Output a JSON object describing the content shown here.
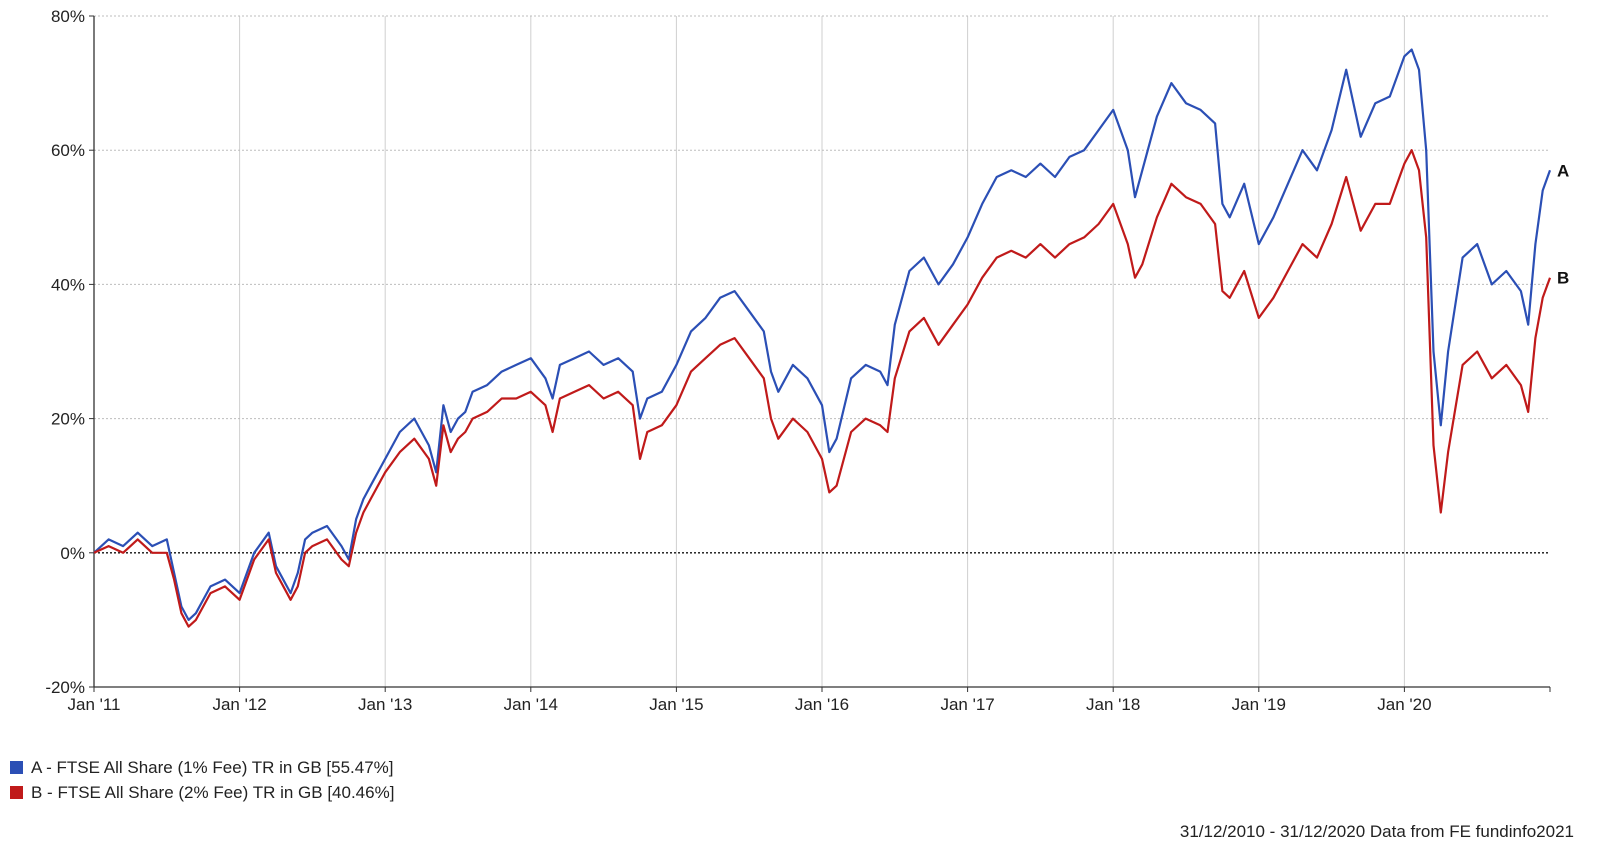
{
  "chart_data": {
    "type": "line",
    "title": "",
    "xlabel": "",
    "ylabel": "",
    "ylim": [
      -20,
      80
    ],
    "y_ticks": [
      "80%",
      "60%",
      "40%",
      "20%",
      "0%",
      "-20%"
    ],
    "y_tick_values": [
      80,
      60,
      40,
      20,
      0,
      -20
    ],
    "x_ticks": [
      "Jan '11",
      "Jan '12",
      "Jan '13",
      "Jan '14",
      "Jan '15",
      "Jan '16",
      "Jan '17",
      "Jan '18",
      "Jan '19",
      "Jan '20"
    ],
    "x_tick_values": [
      2011,
      2012,
      2013,
      2014,
      2015,
      2016,
      2017,
      2018,
      2019,
      2020
    ],
    "xlim": [
      2011,
      2021
    ],
    "grid": true,
    "zero_line": true,
    "legend_placement": "bottom-left",
    "series": [
      {
        "name": "A - FTSE All Share (1% Fee) TR in GB [55.47%]",
        "end_label": "A",
        "color": "#2b4fb5",
        "x": [
          2011.0,
          2011.1,
          2011.2,
          2011.3,
          2011.4,
          2011.5,
          2011.55,
          2011.6,
          2011.65,
          2011.7,
          2011.8,
          2011.9,
          2012.0,
          2012.1,
          2012.2,
          2012.25,
          2012.35,
          2012.4,
          2012.45,
          2012.5,
          2012.6,
          2012.7,
          2012.75,
          2012.8,
          2012.85,
          2012.9,
          2013.0,
          2013.1,
          2013.2,
          2013.3,
          2013.35,
          2013.4,
          2013.45,
          2013.5,
          2013.55,
          2013.6,
          2013.7,
          2013.8,
          2013.9,
          2014.0,
          2014.1,
          2014.15,
          2014.2,
          2014.3,
          2014.4,
          2014.5,
          2014.6,
          2014.7,
          2014.75,
          2014.8,
          2014.9,
          2015.0,
          2015.1,
          2015.2,
          2015.3,
          2015.4,
          2015.5,
          2015.6,
          2015.65,
          2015.7,
          2015.8,
          2015.9,
          2016.0,
          2016.05,
          2016.1,
          2016.2,
          2016.3,
          2016.4,
          2016.45,
          2016.5,
          2016.6,
          2016.7,
          2016.8,
          2016.9,
          2017.0,
          2017.1,
          2017.2,
          2017.3,
          2017.4,
          2017.5,
          2017.6,
          2017.7,
          2017.8,
          2017.9,
          2018.0,
          2018.1,
          2018.15,
          2018.2,
          2018.3,
          2018.4,
          2018.5,
          2018.6,
          2018.7,
          2018.75,
          2018.8,
          2018.9,
          2019.0,
          2019.1,
          2019.2,
          2019.3,
          2019.4,
          2019.5,
          2019.6,
          2019.7,
          2019.8,
          2019.9,
          2020.0,
          2020.05,
          2020.1,
          2020.15,
          2020.2,
          2020.25,
          2020.3,
          2020.4,
          2020.5,
          2020.6,
          2020.7,
          2020.8,
          2020.85,
          2020.9,
          2020.95,
          2021.0
        ],
        "values": [
          0,
          2,
          1,
          3,
          1,
          2,
          -3,
          -8,
          -10,
          -9,
          -5,
          -4,
          -6,
          0,
          3,
          -2,
          -6,
          -3,
          2,
          3,
          4,
          1,
          -1,
          5,
          8,
          10,
          14,
          18,
          20,
          16,
          12,
          22,
          18,
          20,
          21,
          24,
          25,
          27,
          28,
          29,
          26,
          23,
          28,
          29,
          30,
          28,
          29,
          27,
          20,
          23,
          24,
          28,
          33,
          35,
          38,
          39,
          36,
          33,
          27,
          24,
          28,
          26,
          22,
          15,
          17,
          26,
          28,
          27,
          25,
          34,
          42,
          44,
          40,
          43,
          47,
          52,
          56,
          57,
          56,
          58,
          56,
          59,
          60,
          63,
          66,
          60,
          53,
          57,
          65,
          70,
          67,
          66,
          64,
          52,
          50,
          55,
          46,
          50,
          55,
          60,
          57,
          63,
          72,
          62,
          67,
          68,
          74,
          75,
          72,
          60,
          30,
          19,
          30,
          44,
          46,
          40,
          42,
          39,
          34,
          46,
          54,
          57
        ]
      },
      {
        "name": "B - FTSE All Share (2% Fee) TR in GB [40.46%]",
        "end_label": "B",
        "color": "#c01a1a",
        "x": [
          2011.0,
          2011.1,
          2011.2,
          2011.3,
          2011.4,
          2011.5,
          2011.55,
          2011.6,
          2011.65,
          2011.7,
          2011.8,
          2011.9,
          2012.0,
          2012.1,
          2012.2,
          2012.25,
          2012.35,
          2012.4,
          2012.45,
          2012.5,
          2012.6,
          2012.7,
          2012.75,
          2012.8,
          2012.85,
          2012.9,
          2013.0,
          2013.1,
          2013.2,
          2013.3,
          2013.35,
          2013.4,
          2013.45,
          2013.5,
          2013.55,
          2013.6,
          2013.7,
          2013.8,
          2013.9,
          2014.0,
          2014.1,
          2014.15,
          2014.2,
          2014.3,
          2014.4,
          2014.5,
          2014.6,
          2014.7,
          2014.75,
          2014.8,
          2014.9,
          2015.0,
          2015.1,
          2015.2,
          2015.3,
          2015.4,
          2015.5,
          2015.6,
          2015.65,
          2015.7,
          2015.8,
          2015.9,
          2016.0,
          2016.05,
          2016.1,
          2016.2,
          2016.3,
          2016.4,
          2016.45,
          2016.5,
          2016.6,
          2016.7,
          2016.8,
          2016.9,
          2017.0,
          2017.1,
          2017.2,
          2017.3,
          2017.4,
          2017.5,
          2017.6,
          2017.7,
          2017.8,
          2017.9,
          2018.0,
          2018.1,
          2018.15,
          2018.2,
          2018.3,
          2018.4,
          2018.5,
          2018.6,
          2018.7,
          2018.75,
          2018.8,
          2018.9,
          2019.0,
          2019.1,
          2019.2,
          2019.3,
          2019.4,
          2019.5,
          2019.6,
          2019.7,
          2019.8,
          2019.9,
          2020.0,
          2020.05,
          2020.1,
          2020.15,
          2020.2,
          2020.25,
          2020.3,
          2020.4,
          2020.5,
          2020.6,
          2020.7,
          2020.8,
          2020.85,
          2020.9,
          2020.95,
          2021.0
        ],
        "values": [
          0,
          1,
          0,
          2,
          0,
          0,
          -4,
          -9,
          -11,
          -10,
          -6,
          -5,
          -7,
          -1,
          2,
          -3,
          -7,
          -5,
          0,
          1,
          2,
          -1,
          -2,
          3,
          6,
          8,
          12,
          15,
          17,
          14,
          10,
          19,
          15,
          17,
          18,
          20,
          21,
          23,
          23,
          24,
          22,
          18,
          23,
          24,
          25,
          23,
          24,
          22,
          14,
          18,
          19,
          22,
          27,
          29,
          31,
          32,
          29,
          26,
          20,
          17,
          20,
          18,
          14,
          9,
          10,
          18,
          20,
          19,
          18,
          26,
          33,
          35,
          31,
          34,
          37,
          41,
          44,
          45,
          44,
          46,
          44,
          46,
          47,
          49,
          52,
          46,
          41,
          43,
          50,
          55,
          53,
          52,
          49,
          39,
          38,
          42,
          35,
          38,
          42,
          46,
          44,
          49,
          56,
          48,
          52,
          52,
          58,
          60,
          57,
          47,
          16,
          6,
          15,
          28,
          30,
          26,
          28,
          25,
          21,
          32,
          38,
          41
        ]
      }
    ]
  },
  "legend": {
    "items": [
      {
        "label": "A - FTSE All Share (1% Fee) TR in GB [55.47%]",
        "color": "#2b4fb5"
      },
      {
        "label": "B - FTSE All Share (2% Fee) TR in GB [40.46%]",
        "color": "#c01a1a"
      }
    ]
  },
  "footer": {
    "source_text": "31/12/2010 - 31/12/2020 Data from FE fundinfo2021"
  }
}
